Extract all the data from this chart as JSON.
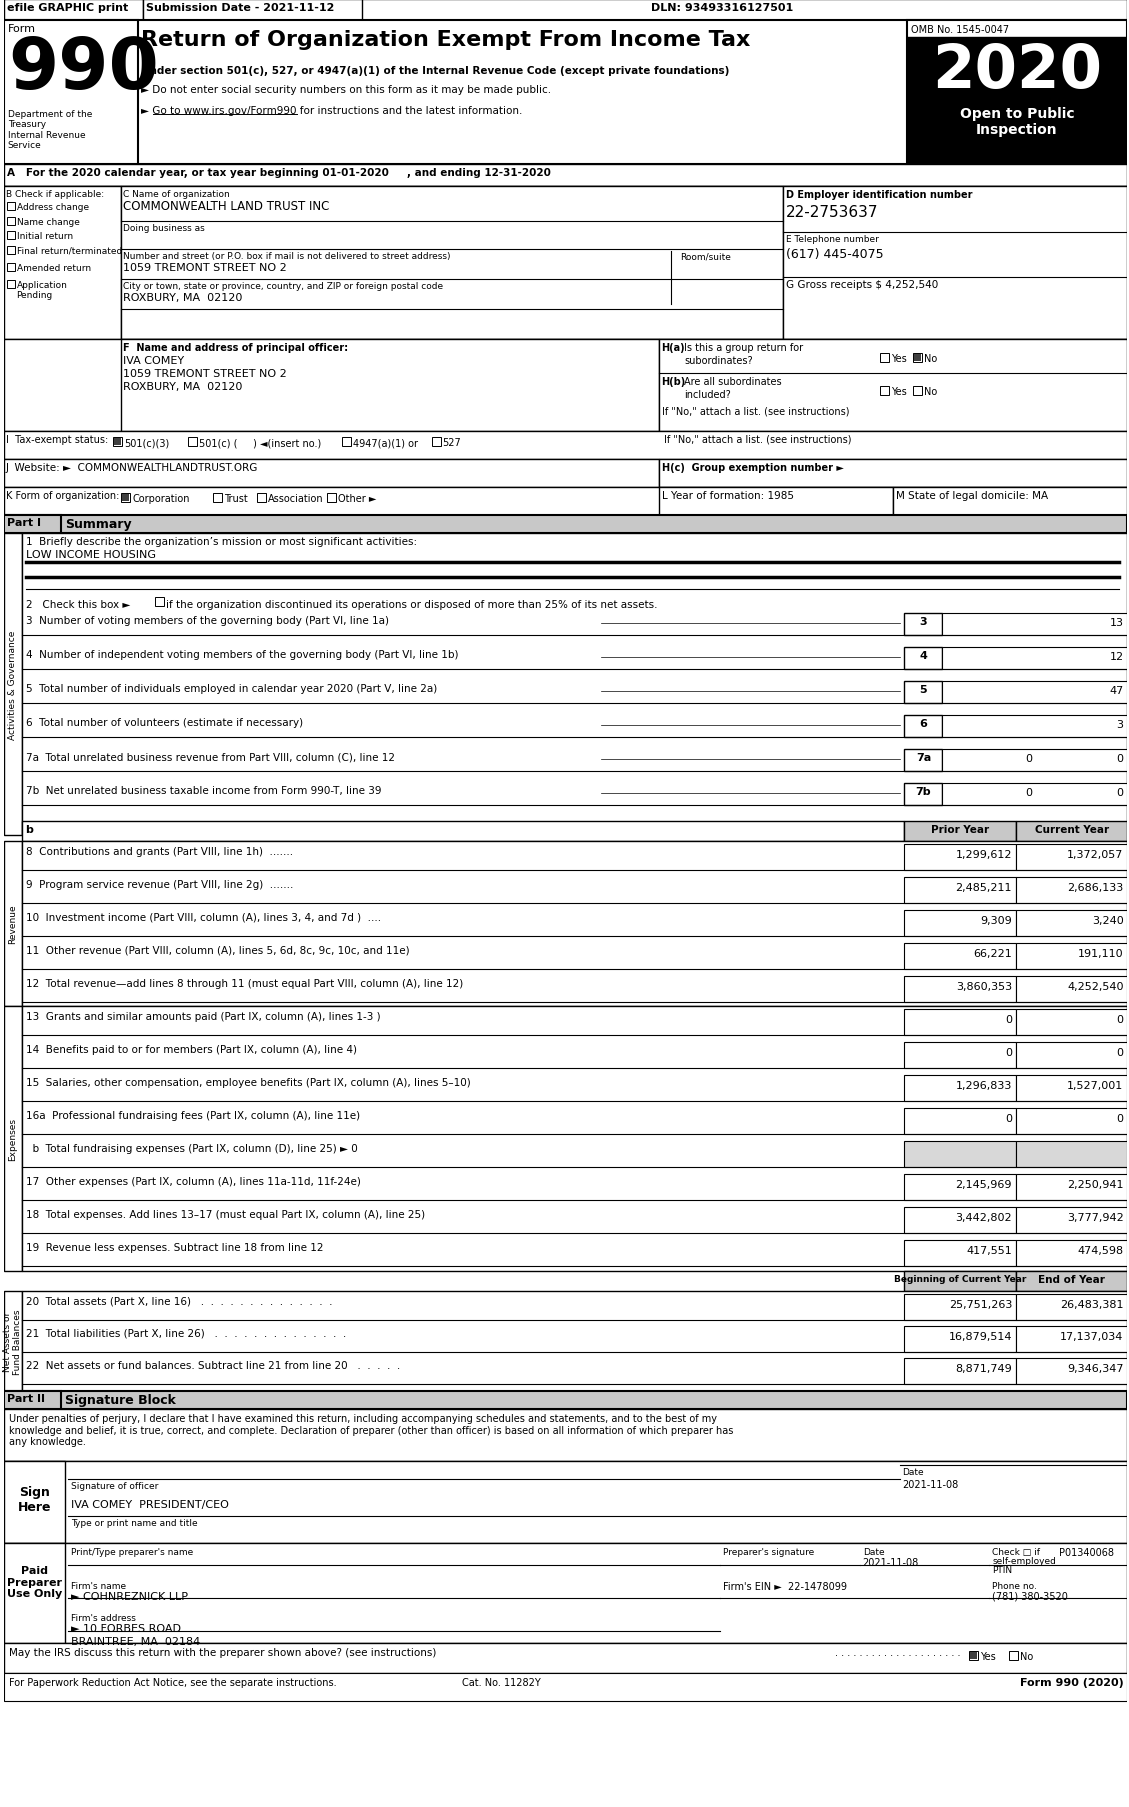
{
  "efile_text": "efile GRAPHIC print",
  "submission_date": "Submission Date - 2021-11-12",
  "dln": "DLN: 93493316127501",
  "form_number": "990",
  "title": "Return of Organization Exempt From Income Tax",
  "subtitle1": "Under section 501(c), 527, or 4947(a)(1) of the Internal Revenue Code (except private foundations)",
  "subtitle2": "► Do not enter social security numbers on this form as it may be made public.",
  "subtitle3": "► Go to www.irs.gov/Form990 for instructions and the latest information.",
  "omb": "OMB No. 1545-0047",
  "year": "2020",
  "open_public": "Open to Public\nInspection",
  "section_a": "A   For the 2020 calendar year, or tax year beginning 01-01-2020     , and ending 12-31-2020",
  "section_b_label": "B Check if applicable:",
  "checkboxes_b": [
    "Address change",
    "Name change",
    "Initial return",
    "Final return/terminated",
    "Amended return",
    "Application\nPending"
  ],
  "org_name": "COMMONWEALTH LAND TRUST INC",
  "ein": "22-2753637",
  "phone": "(617) 445-4075",
  "gross_receipts": "4,252,540",
  "address": "1059 TREMONT STREET NO 2",
  "city": "ROXBURY, MA  02120",
  "officer_name": "IVA COMEY",
  "officer_address1": "1059 TREMONT STREET NO 2",
  "officer_city": "ROXBURY, MA  02120",
  "website": "COMMONWEALTHLANDTRUST.ORG",
  "year_formation": "1985",
  "state": "MA",
  "mission": "LOW INCOME HOUSING",
  "lines_3_7": [
    {
      "num": "3",
      "label": "Number of voting members of the governing body (Part VI, line 1a)",
      "current": "13"
    },
    {
      "num": "4",
      "label": "Number of independent voting members of the governing body (Part VI, line 1b)",
      "current": "12"
    },
    {
      "num": "5",
      "label": "Total number of individuals employed in calendar year 2020 (Part V, line 2a)",
      "current": "47"
    },
    {
      "num": "6",
      "label": "Total number of volunteers (estimate if necessary)",
      "current": "3"
    },
    {
      "num": "7a",
      "label": "Total unrelated business revenue from Part VIII, column (C), line 12",
      "prior": "0",
      "current": "0"
    },
    {
      "num": "7b",
      "label": "Net unrelated business taxable income from Form 990-T, line 39",
      "prior": "0",
      "current": "0"
    }
  ],
  "revenue_lines": [
    {
      "num": "8",
      "label": "Contributions and grants (Part VIII, line 1h)",
      "dots": ".......",
      "prior": "1,299,612",
      "current": "1,372,057"
    },
    {
      "num": "9",
      "label": "Program service revenue (Part VIII, line 2g)",
      "dots": ".......",
      "prior": "2,485,211",
      "current": "2,686,133"
    },
    {
      "num": "10",
      "label": "Investment income (Part VIII, column (A), lines 3, 4, and 7d )",
      "dots": "....",
      "prior": "9,309",
      "current": "3,240"
    },
    {
      "num": "11",
      "label": "Other revenue (Part VIII, column (A), lines 5, 6d, 8c, 9c, 10c, and 11e)",
      "dots": "",
      "prior": "66,221",
      "current": "191,110"
    },
    {
      "num": "12",
      "label": "Total revenue—add lines 8 through 11 (must equal Part VIII, column (A), line 12)",
      "dots": "",
      "prior": "3,860,353",
      "current": "4,252,540"
    }
  ],
  "expense_lines": [
    {
      "num": "13",
      "label": "Grants and similar amounts paid (Part IX, column (A), lines 1-3 )",
      "dots": " .  .  .  .",
      "prior": "0",
      "current": "0",
      "gray": false
    },
    {
      "num": "14",
      "label": "Benefits paid to or for members (Part IX, column (A), line 4)",
      "dots": " .  .  .  .  .  .",
      "prior": "0",
      "current": "0",
      "gray": false
    },
    {
      "num": "15",
      "label": "Salaries, other compensation, employee benefits (Part IX, column (A), lines 5–10)",
      "dots": "",
      "prior": "1,296,833",
      "current": "1,527,001",
      "gray": false
    },
    {
      "num": "16a",
      "label": "Professional fundraising fees (Part IX, column (A), line 11e)",
      "dots": " .  .  .  .  .",
      "prior": "0",
      "current": "0",
      "gray": false
    },
    {
      "num": "b",
      "label": "  b  Total fundraising expenses (Part IX, column (D), line 25) ► 0",
      "dots": "",
      "prior": "",
      "current": "",
      "gray": true
    },
    {
      "num": "17",
      "label": "Other expenses (Part IX, column (A), lines 11a-11d, 11f-24e)",
      "dots": " .  .  .  .",
      "prior": "2,145,969",
      "current": "2,250,941",
      "gray": false
    },
    {
      "num": "18",
      "label": "Total expenses. Add lines 13–17 (must equal Part IX, column (A), line 25)",
      "dots": "",
      "prior": "3,442,802",
      "current": "3,777,942",
      "gray": false
    },
    {
      "num": "19",
      "label": "Revenue less expenses. Subtract line 18 from line 12",
      "dots": " .  .  .  .  .  .  .  .",
      "prior": "417,551",
      "current": "474,598",
      "gray": false
    }
  ],
  "net_asset_lines": [
    {
      "num": "20",
      "label": "Total assets (Part X, line 16)",
      "dots": " .  .  .  .  .  .  .  .  .  .  .  .  .  .",
      "begin": "25,751,263",
      "end": "26,483,381"
    },
    {
      "num": "21",
      "label": "Total liabilities (Part X, line 26)",
      "dots": " .  .  .  .  .  .  .  .  .  .  .  .  .  .",
      "begin": "16,879,514",
      "end": "17,137,034"
    },
    {
      "num": "22",
      "label": "Net assets or fund balances. Subtract line 21 from line 20",
      "dots": " .  .  .  .  .",
      "begin": "8,871,749",
      "end": "9,346,347"
    }
  ],
  "sig_block_text": "Under penalties of perjury, I declare that I have examined this return, including accompanying schedules and statements, and to the best of my\nknowledge and belief, it is true, correct, and complete. Declaration of preparer (other than officer) is based on all information of which preparer has\nany knowledge.",
  "sig_date": "2021-11-08",
  "sig_name": "IVA COMEY  PRESIDENT/CEO",
  "ptin": "P01340068",
  "firm_name": "► COHNREZNICK LLP",
  "firm_ein": "22-1478099",
  "firm_address": "► 10 FORBES ROAD",
  "firm_city": "BRAINTREE, MA  02184",
  "phone_no": "(781) 380-3520",
  "cat_no": "Cat. No. 11282Y",
  "form_bottom": "Form 990 (2020)"
}
